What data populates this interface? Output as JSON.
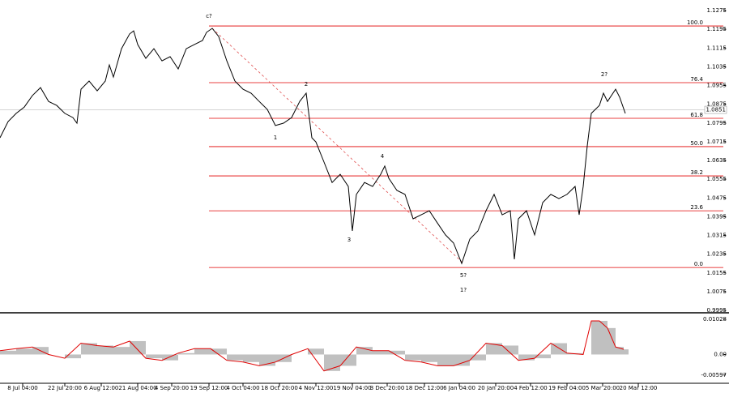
{
  "chart_data": [
    {
      "type": "line",
      "xlim": [
        0,
        893
      ],
      "ylim": [
        0.9995,
        1.1275
      ],
      "yticks": [
        1.1275,
        1.1195,
        1.1115,
        1.1035,
        1.0955,
        1.0875,
        1.0795,
        1.0715,
        1.0635,
        1.0555,
        1.0475,
        1.0395,
        1.0315,
        1.0235,
        1.0155,
        1.0075,
        0.9995
      ],
      "xticks": [
        {
          "value": 28,
          "label": "8 Jul 04:00"
        },
        {
          "value": 80,
          "label": "22 Jul 20:00"
        },
        {
          "value": 125,
          "label": "6 Aug 12:00"
        },
        {
          "value": 170,
          "label": "21 Aug 04:00"
        },
        {
          "value": 212,
          "label": "4 Sep 20:00"
        },
        {
          "value": 258,
          "label": "19 Sep 12:00"
        },
        {
          "value": 300,
          "label": "4 Oct 04:00"
        },
        {
          "value": 345,
          "label": "18 Oct 20:00"
        },
        {
          "value": 390,
          "label": "4 Nov 12:00"
        },
        {
          "value": 435,
          "label": "19 Nov 04:00"
        },
        {
          "value": 478,
          "label": "3 Dec 20:00"
        },
        {
          "value": 524,
          "label": "18 Dec 12:00"
        },
        {
          "value": 567,
          "label": "6 Jan 04:00"
        },
        {
          "value": 612,
          "label": "20 Jan 20:00"
        },
        {
          "value": 655,
          "label": "4 Feb 12:00"
        },
        {
          "value": 700,
          "label": "19 Feb 04:00"
        },
        {
          "value": 744,
          "label": "5 Mar 20:00"
        },
        {
          "value": 788,
          "label": "20 Mar 12:00"
        }
      ],
      "color": "#000000",
      "x": [
        0,
        10,
        20,
        30,
        40,
        50,
        60,
        70,
        80,
        90,
        95,
        100,
        110,
        120,
        130,
        135,
        140,
        150,
        160,
        165,
        170,
        180,
        190,
        200,
        210,
        220,
        230,
        240,
        250,
        255,
        262,
        270,
        280,
        290,
        300,
        310,
        320,
        330,
        340,
        350,
        360,
        370,
        378,
        385,
        390,
        400,
        410,
        420,
        430,
        435,
        440,
        450,
        460,
        470,
        475,
        480,
        490,
        500,
        510,
        520,
        530,
        540,
        550,
        560,
        570,
        575,
        580,
        590,
        600,
        610,
        620,
        630,
        635,
        640,
        650,
        660,
        670,
        680,
        690,
        700,
        710,
        715,
        720,
        725,
        730,
        740,
        745,
        750,
        760,
        765,
        772
      ],
      "values": [
        1.0732,
        1.0801,
        1.0836,
        1.0863,
        1.0912,
        1.0946,
        1.0887,
        1.087,
        1.0836,
        1.0818,
        1.0794,
        1.0939,
        1.0974,
        1.0932,
        1.0974,
        1.1043,
        1.0991,
        1.1112,
        1.1175,
        1.1188,
        1.113,
        1.1071,
        1.1112,
        1.106,
        1.1078,
        1.1026,
        1.1112,
        1.113,
        1.1147,
        1.1182,
        1.1199,
        1.1164,
        1.106,
        1.0974,
        1.0939,
        1.0922,
        1.0887,
        1.0853,
        1.0784,
        1.0794,
        1.0818,
        1.0887,
        1.0922,
        1.0732,
        1.0714,
        1.0628,
        1.0541,
        1.0576,
        1.0524,
        1.0334,
        1.049,
        1.0541,
        1.0524,
        1.0576,
        1.0611,
        1.0559,
        1.0507,
        1.049,
        1.0386,
        1.0403,
        1.042,
        1.0368,
        1.0317,
        1.0282,
        1.0195,
        1.0247,
        1.0299,
        1.0334,
        1.042,
        1.049,
        1.0403,
        1.042,
        1.0213,
        1.0386,
        1.042,
        1.0317,
        1.0455,
        1.049,
        1.0472,
        1.049,
        1.0524,
        1.0403,
        1.0524,
        1.0697,
        1.0836,
        1.087,
        1.0922,
        1.0887,
        1.0939,
        1.0905,
        1.0836
      ],
      "last_price": 1.0851,
      "fib_x": [
        258,
        893
      ],
      "fib_color": "#e00000",
      "fib_levels": [
        {
          "label": "100.0",
          "price": 1.1209
        },
        {
          "label": "76.4",
          "price": 1.0967
        },
        {
          "label": "61.8",
          "price": 1.0815
        },
        {
          "label": "50.0",
          "price": 1.0694
        },
        {
          "label": "38.2",
          "price": 1.0569
        },
        {
          "label": "23.6",
          "price": 1.042
        },
        {
          "label": "0.0",
          "price": 1.0178
        }
      ],
      "trend_line": {
        "x": [
          262,
          572
        ],
        "values": [
          1.1199,
          1.0196
        ],
        "color": "#e05050"
      },
      "annotations": [
        {
          "text": "c?",
          "x": 258,
          "price": 1.1251,
          "color": "#e00000",
          "size": 14
        },
        {
          "text": "2",
          "x": 378,
          "price": 1.096,
          "color": "#2020d0",
          "size": 12
        },
        {
          "text": "1",
          "x": 340,
          "price": 1.0732,
          "color": "#2020d0",
          "size": 12
        },
        {
          "text": "3",
          "x": 431,
          "price": 1.0296,
          "color": "#2020d0",
          "size": 12
        },
        {
          "text": "4",
          "x": 472,
          "price": 1.0652,
          "color": "#2020d0",
          "size": 12
        },
        {
          "text": "5?",
          "x": 572,
          "price": 1.0144,
          "color": "#2020d0",
          "size": 12
        },
        {
          "text": "1?",
          "x": 572,
          "price": 1.0081,
          "color": "#e00000",
          "size": 14
        },
        {
          "text": "2?",
          "x": 746,
          "price": 1.1002,
          "color": "#e00000",
          "size": 14
        }
      ]
    },
    {
      "type": "bar",
      "xlim": [
        0,
        893
      ],
      "ylim": [
        -0.0065,
        0.0105
      ],
      "yticks": [
        0.01028,
        {
          "value": 0,
          "label": "0.00"
        },
        -0.00597
      ],
      "color": "#c0c0c0",
      "line_color": "#e00000",
      "x": [
        0,
        20,
        40,
        60,
        80,
        100,
        120,
        140,
        160,
        180,
        200,
        220,
        240,
        260,
        280,
        300,
        320,
        340,
        360,
        380,
        400,
        420,
        440,
        460,
        480,
        500,
        520,
        540,
        560,
        580,
        600,
        620,
        640,
        660,
        680,
        700,
        720,
        730,
        740,
        750,
        760,
        770
      ],
      "values": [
        0.0011,
        0.0017,
        0.0022,
        0,
        -0.0011,
        0.0033,
        0.0026,
        0.0022,
        0.0039,
        -0.0011,
        -0.0017,
        0.0004,
        0.0017,
        0.0017,
        -0.0017,
        -0.0022,
        -0.0033,
        -0.0022,
        0,
        0.0017,
        -0.0048,
        -0.0033,
        0.0022,
        0.0011,
        0.0011,
        -0.0017,
        -0.0022,
        -0.0033,
        -0.0033,
        -0.0017,
        0.0033,
        0.0026,
        -0.0017,
        -0.0011,
        0.0033,
        0.0004,
        0,
        0.0098,
        0.0098,
        0.0077,
        0.0022,
        0.0015
      ]
    }
  ]
}
